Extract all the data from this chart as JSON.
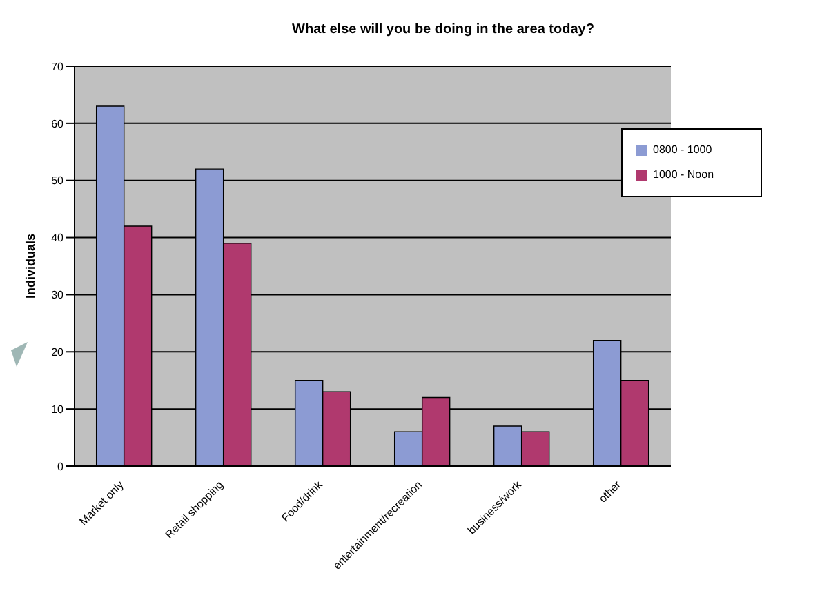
{
  "chart_data": {
    "type": "bar",
    "title": "What else will you be doing in the area today?",
    "ylabel": "Individuals",
    "categories": [
      "Market only",
      "Retail shopping",
      "Food/drink",
      "entertainment/recreation",
      "business/work",
      "other"
    ],
    "series": [
      {
        "name": "0800 - 1000",
        "color": "#8c9bd3",
        "values": [
          63,
          52,
          15,
          6,
          7,
          22
        ]
      },
      {
        "name": "1000 - Noon",
        "color": "#b0396e",
        "values": [
          42,
          39,
          13,
          12,
          6,
          15
        ]
      }
    ],
    "ylim": [
      0,
      70
    ],
    "yticks": [
      0,
      10,
      20,
      30,
      40,
      50,
      60,
      70
    ],
    "grid": "y",
    "legend": "top right"
  }
}
